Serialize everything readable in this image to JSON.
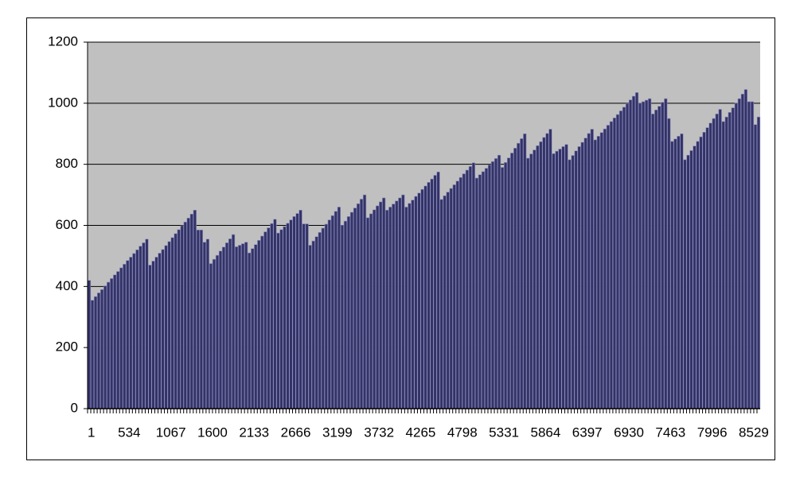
{
  "chart_data": {
    "type": "bar",
    "categories": [
      "1",
      null,
      null,
      null,
      null,
      null,
      null,
      null,
      null,
      null,
      null,
      null,
      null,
      "534",
      null,
      null,
      null,
      null,
      null,
      null,
      null,
      null,
      null,
      null,
      null,
      null,
      "1067",
      null,
      null,
      null,
      null,
      null,
      null,
      null,
      null,
      null,
      null,
      null,
      null,
      "1600",
      null,
      null,
      null,
      null,
      null,
      null,
      null,
      null,
      null,
      null,
      null,
      null,
      "2133",
      null,
      null,
      null,
      null,
      null,
      null,
      null,
      null,
      null,
      null,
      null,
      null,
      "2666",
      null,
      null,
      null,
      null,
      null,
      null,
      null,
      null,
      null,
      null,
      null,
      null,
      "3199",
      null,
      null,
      null,
      null,
      null,
      null,
      null,
      null,
      null,
      null,
      null,
      null,
      "3732",
      null,
      null,
      null,
      null,
      null,
      null,
      null,
      null,
      null,
      null,
      null,
      null,
      "4265",
      null,
      null,
      null,
      null,
      null,
      null,
      null,
      null,
      null,
      null,
      null,
      null,
      "4798",
      null,
      null,
      null,
      null,
      null,
      null,
      null,
      null,
      null,
      null,
      null,
      null,
      "5331",
      null,
      null,
      null,
      null,
      null,
      null,
      null,
      null,
      null,
      null,
      null,
      null,
      "5864",
      null,
      null,
      null,
      null,
      null,
      null,
      null,
      null,
      null,
      null,
      null,
      null,
      "6397",
      null,
      null,
      null,
      null,
      null,
      null,
      null,
      null,
      null,
      null,
      null,
      null,
      "6930",
      null,
      null,
      null,
      null,
      null,
      null,
      null,
      null,
      null,
      null,
      null,
      null,
      "7463",
      null,
      null,
      null,
      null,
      null,
      null,
      null,
      null,
      null,
      null,
      null,
      null,
      "7996",
      null,
      null,
      null,
      null,
      null,
      null,
      null,
      null,
      null,
      null,
      null,
      null,
      "8529",
      null
    ],
    "values": [
      420,
      355,
      367,
      379,
      390,
      402,
      414,
      426,
      438,
      449,
      461,
      473,
      485,
      496,
      508,
      520,
      532,
      543,
      555,
      470,
      483,
      496,
      509,
      521,
      534,
      547,
      560,
      573,
      586,
      599,
      611,
      624,
      637,
      650,
      585,
      585,
      545,
      555,
      475,
      489,
      502,
      516,
      529,
      543,
      556,
      570,
      530,
      535,
      540,
      545,
      510,
      524,
      537,
      551,
      565,
      579,
      592,
      606,
      620,
      575,
      586,
      596,
      607,
      618,
      629,
      639,
      650,
      605,
      605,
      535,
      549,
      563,
      577,
      591,
      604,
      618,
      632,
      646,
      660,
      600,
      614,
      629,
      643,
      657,
      671,
      686,
      700,
      625,
      638,
      651,
      664,
      677,
      690,
      650,
      660,
      670,
      680,
      690,
      700,
      660,
      672,
      683,
      695,
      706,
      718,
      729,
      741,
      752,
      764,
      775,
      685,
      697,
      709,
      721,
      733,
      745,
      757,
      769,
      781,
      793,
      805,
      755,
      766,
      776,
      787,
      798,
      809,
      819,
      830,
      790,
      806,
      821,
      837,
      853,
      869,
      884,
      900,
      820,
      834,
      847,
      861,
      874,
      888,
      901,
      915,
      835,
      843,
      850,
      858,
      865,
      815,
      829,
      844,
      858,
      872,
      886,
      901,
      915,
      880,
      892,
      904,
      916,
      928,
      940,
      952,
      963,
      975,
      987,
      999,
      1011,
      1023,
      1035,
      1000,
      1005,
      1010,
      1015,
      965,
      978,
      990,
      1003,
      1015,
      950,
      875,
      883,
      892,
      900,
      815,
      830,
      845,
      860,
      875,
      890,
      905,
      920,
      935,
      950,
      965,
      980,
      940,
      955,
      970,
      985,
      1000,
      1015,
      1030,
      1045,
      1005,
      1005,
      930,
      955
    ],
    "color": "#333366",
    "ylim": [
      0,
      1200
    ],
    "yticks": [
      0,
      200,
      400,
      600,
      800,
      1000,
      1200
    ],
    "grid": true
  }
}
